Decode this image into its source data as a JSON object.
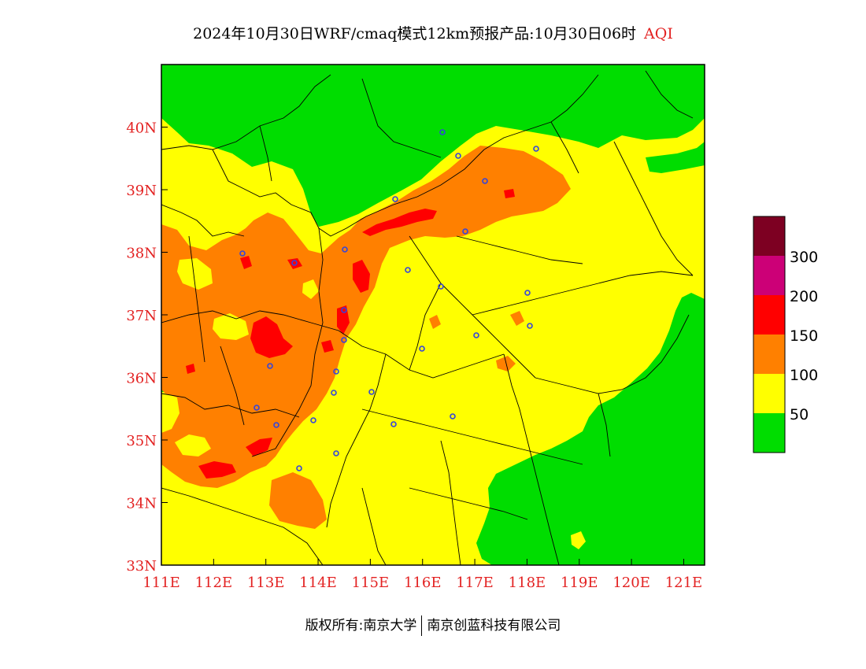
{
  "title": {
    "main": "2024年10月30日WRF/cmaq模式12km预报产品:10月30日06时",
    "sub": "AQI"
  },
  "map": {
    "lon_ticks": [
      "111E",
      "112E",
      "113E",
      "114E",
      "115E",
      "116E",
      "117E",
      "118E",
      "119E",
      "120E",
      "121E"
    ],
    "lat_ticks": [
      "40N",
      "39N",
      "38N",
      "37N",
      "36N",
      "35N",
      "34N",
      "33N"
    ],
    "lon_range": [
      111,
      121.4
    ],
    "lat_range": [
      33,
      41
    ]
  },
  "legend": {
    "colors": [
      "#00dd00",
      "#ffff00",
      "#ff8000",
      "#ff0000",
      "#cc0077",
      "#7d0022"
    ],
    "labels": [
      "50",
      "100",
      "150",
      "200",
      "300"
    ]
  },
  "footer": {
    "left": "版权所有:南京大学",
    "right": "南京创蓝科技有限公司"
  }
}
